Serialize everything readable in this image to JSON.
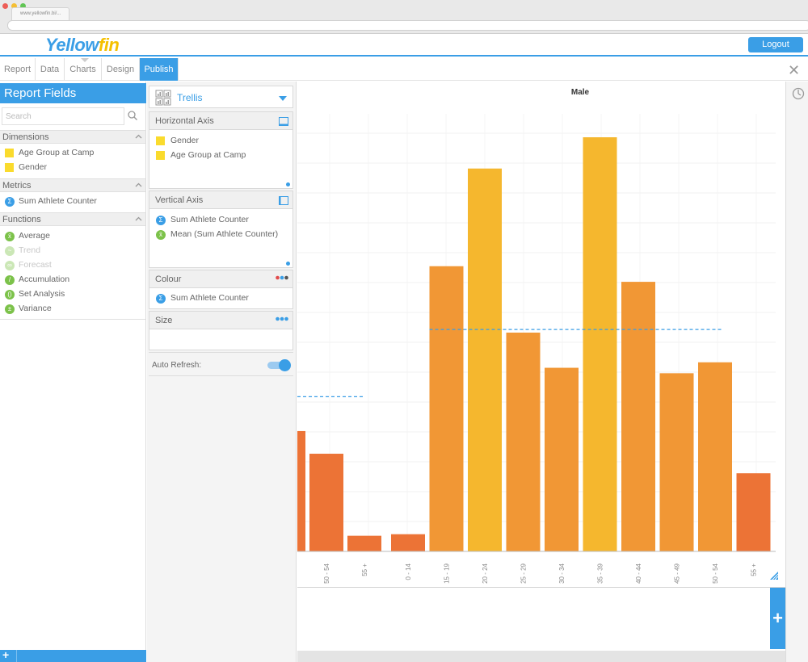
{
  "browser": {
    "tab_title": "www.yellowfin.bi/..."
  },
  "header": {
    "logo_part1": "Yellow",
    "logo_part2": "fin",
    "logout_label": "Logout"
  },
  "nav": {
    "tabs": [
      "Report",
      "Data",
      "Charts",
      "Design",
      "Publish"
    ],
    "active": "Publish"
  },
  "left": {
    "title": "Report Fields",
    "search_placeholder": "Search",
    "dimensions": {
      "label": "Dimensions",
      "items": [
        "Age Group at Camp",
        "Gender"
      ]
    },
    "metrics": {
      "label": "Metrics",
      "items": [
        "Sum Athlete Counter"
      ]
    },
    "functions": {
      "label": "Functions",
      "items": [
        "Average",
        "Trend",
        "Forecast",
        "Accumulation",
        "Set Analysis",
        "Variance"
      ],
      "disabled": [
        "Trend",
        "Forecast"
      ]
    }
  },
  "middle": {
    "trellis_label": "Trellis",
    "horizontal": {
      "label": "Horizontal Axis",
      "items": [
        "Gender",
        "Age Group at Camp"
      ]
    },
    "vertical": {
      "label": "Vertical Axis",
      "items": [
        "Sum Athlete Counter",
        "Mean (Sum Athlete Counter)"
      ]
    },
    "colour": {
      "label": "Colour",
      "items": [
        "Sum Athlete Counter"
      ]
    },
    "size": {
      "label": "Size"
    },
    "auto_refresh_label": "Auto Refresh:",
    "auto_refresh_on": true
  },
  "colors": {
    "accent": "#3a9ee6",
    "dimension": "#fadb2d",
    "function": "#7cc24a",
    "bar_low": "#ec7336",
    "bar_mid": "#f19735",
    "bar_high": "#f5b72e",
    "mean_line": "#3a9ee6"
  },
  "chart_data": {
    "type": "bar",
    "title": "Male",
    "panels": [
      {
        "name": "",
        "categories": [
          "50 - 54",
          "55 +"
        ],
        "values": [
          125,
          20
        ],
        "partial_left_value": 154,
        "mean": 198
      },
      {
        "name": "Male",
        "categories": [
          "0 - 14",
          "15 - 19",
          "20 - 24",
          "25 - 29",
          "30 - 34",
          "35 - 39",
          "40 - 44",
          "45 - 49",
          "50 - 54",
          "55 +"
        ],
        "values": [
          22,
          365,
          490,
          280,
          235,
          530,
          345,
          228,
          242,
          100
        ],
        "mean": 284
      }
    ],
    "ylim": [
      0,
      560
    ],
    "grid": true,
    "legend": "none"
  }
}
